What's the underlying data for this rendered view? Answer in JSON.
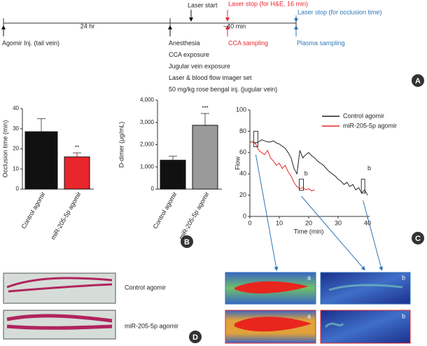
{
  "timeline": {
    "interval_1": "24 hr",
    "interval_2": "~40 min",
    "injection": "Agomir Inj. (tail vein)",
    "laser_start": "Laser start",
    "laser_stop_he": "Laser stop (for H&E, 16 min)",
    "laser_stop_occlusion": "Laser stop (for occlusion time)",
    "cca_sampling": "CCA sampling",
    "plasma_sampling": "Plasma sampling",
    "steps": [
      "Anesthesia",
      "CCA exposure",
      "Jugular vein exposure",
      "Laser & blood flow imager set",
      "50 mg/kg rose bengal inj. (jugular vein)"
    ]
  },
  "panels": [
    "A",
    "B",
    "C",
    "D"
  ],
  "chart_data": [
    {
      "type": "bar",
      "y_label": "Occlusion time (min)",
      "categories": [
        "Control agomir",
        "miR-205-5p agomir"
      ],
      "values": [
        28.5,
        16
      ],
      "errors": [
        6.5,
        2
      ],
      "colors": [
        "#111111",
        "#e8262b"
      ],
      "annotations": [
        {
          "index": 1,
          "text": "**"
        }
      ],
      "ylim": [
        0,
        40
      ],
      "yticks": [
        0,
        10,
        20,
        30,
        40
      ]
    },
    {
      "type": "bar",
      "y_label": "D-dimer (μg/mL)",
      "categories": [
        "Control agomir",
        "miR-205-5p agomir"
      ],
      "values": [
        1300,
        2870
      ],
      "errors": [
        180,
        530
      ],
      "colors": [
        "#111111",
        "#9a9a9a"
      ],
      "annotations": [
        {
          "index": 1,
          "text": "***"
        }
      ],
      "ylim": [
        0,
        4000
      ],
      "yticks": [
        0,
        {
          "value": 1000,
          "label": "1,000"
        },
        {
          "value": 2000,
          "label": "2,000"
        },
        {
          "value": 3000,
          "label": "3,000"
        },
        {
          "value": 4000,
          "label": "4,000"
        }
      ]
    },
    {
      "type": "line",
      "x_label": "Time (min)",
      "y_label": "Flow",
      "xlim": [
        0,
        40
      ],
      "ylim": [
        0,
        100
      ],
      "xticks": [
        0,
        10,
        20,
        30,
        40
      ],
      "yticks": [
        0,
        20,
        40,
        60,
        80,
        100
      ],
      "series": [
        {
          "name": "Control agomir",
          "color": "#222222",
          "x": [
            0,
            1,
            2,
            3,
            4,
            5,
            6,
            7,
            8,
            9,
            10,
            11,
            12,
            13,
            14,
            15,
            16,
            17,
            18,
            19,
            20,
            21,
            22,
            23,
            24,
            25,
            26,
            27,
            28,
            29,
            30,
            31,
            32,
            33,
            34,
            35,
            36,
            37,
            38,
            39,
            40
          ],
          "values": [
            70,
            70,
            69,
            70,
            72,
            71,
            70,
            70,
            71,
            69,
            68,
            66,
            64,
            60,
            55,
            45,
            40,
            62,
            55,
            58,
            60,
            57,
            55,
            52,
            50,
            48,
            45,
            42,
            40,
            38,
            35,
            33,
            30,
            32,
            28,
            30,
            25,
            27,
            22,
            25,
            20
          ]
        },
        {
          "name": "miR-205-5p agomir",
          "color": "#e8262b",
          "x": [
            0,
            1,
            2,
            3,
            4,
            5,
            6,
            7,
            8,
            9,
            10,
            11,
            12,
            13,
            14,
            15,
            16,
            17,
            18,
            19,
            20,
            21,
            22
          ],
          "values": [
            70,
            70,
            68,
            62,
            60,
            58,
            62,
            55,
            52,
            48,
            50,
            45,
            48,
            42,
            38,
            32,
            28,
            26,
            27,
            25,
            26,
            24,
            25
          ]
        }
      ],
      "annotations": [
        "b",
        "b"
      ]
    }
  ],
  "images_c": [
    "a",
    "b",
    "a",
    "b"
  ],
  "images_d": [
    "Control agomir",
    "miR-205-5p agomir"
  ]
}
